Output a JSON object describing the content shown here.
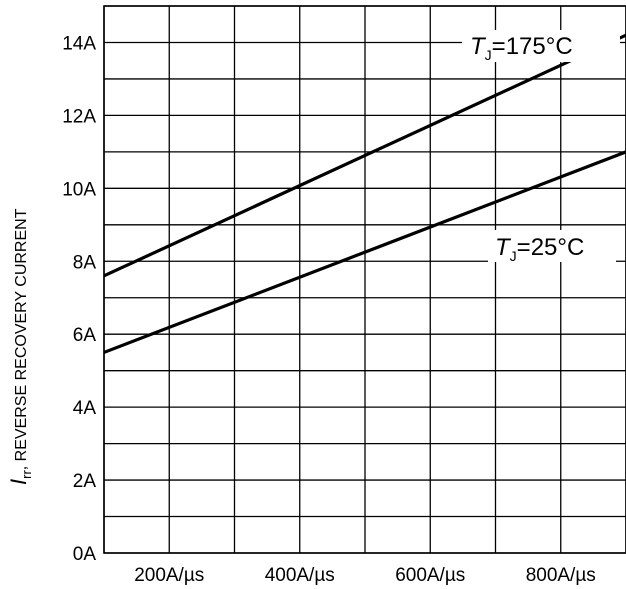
{
  "chart_data": {
    "type": "line",
    "ylabel": {
      "symbol": "I",
      "subscript": "rr",
      "text": ", REVERSE RECOVERY CURRENT"
    },
    "xlim": [
      100,
      900
    ],
    "ylim": [
      0,
      15
    ],
    "grid": true,
    "x_ticks": [
      200,
      400,
      600,
      800
    ],
    "x_tick_labels": [
      "200A/µs",
      "400A/µs",
      "600A/µs",
      "800A/µs"
    ],
    "y_ticks": [
      0,
      2,
      4,
      6,
      8,
      10,
      12,
      14
    ],
    "y_tick_labels": [
      "0A",
      "2A",
      "4A",
      "6A",
      "8A",
      "10A",
      "12A",
      "14A"
    ],
    "series": [
      {
        "name": "T_J=175°C",
        "label": {
          "symbol": "T",
          "subscript": "J",
          "text": "=175°C"
        },
        "x": [
          100,
          900
        ],
        "y": [
          7.6,
          14.2
        ]
      },
      {
        "name": "T_J=25°C",
        "label": {
          "symbol": "T",
          "subscript": "J",
          "text": "=25°C"
        },
        "x": [
          100,
          900
        ],
        "y": [
          5.5,
          11.0
        ]
      }
    ]
  }
}
